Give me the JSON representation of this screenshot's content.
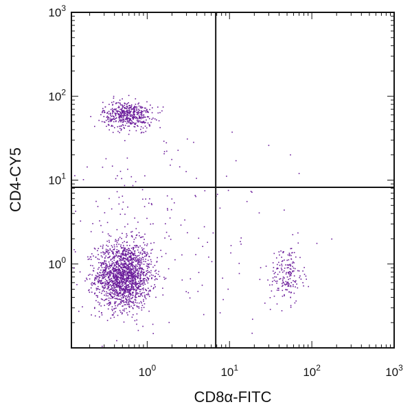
{
  "chart_data": {
    "type": "scatter",
    "title": "",
    "xlabel": "CD8α-FITC",
    "ylabel": "CD4-CY5",
    "x_scale": "log",
    "y_scale": "log",
    "xlim": [
      0.12,
      1000
    ],
    "ylim": [
      0.1,
      1000
    ],
    "x_ticks": [
      {
        "value": 1,
        "label": "10^0"
      },
      {
        "value": 10,
        "label": "10^1"
      },
      {
        "value": 100,
        "label": "10^2"
      },
      {
        "value": 1000,
        "label": "10^3"
      }
    ],
    "y_ticks": [
      {
        "value": 1,
        "label": "10^0"
      },
      {
        "value": 10,
        "label": "10^1"
      },
      {
        "value": 100,
        "label": "10^2"
      },
      {
        "value": 1000,
        "label": "10^3"
      }
    ],
    "quadrant_gates": {
      "x": 6.8,
      "y": 8.2
    },
    "point_color": "#6a1b9a",
    "populations": [
      {
        "center": [
          0.52,
          0.72
        ],
        "spread_log": [
          0.17,
          0.2
        ],
        "count": 1700
      },
      {
        "center": [
          0.58,
          60
        ],
        "spread_log": [
          0.15,
          0.08
        ],
        "count": 480
      },
      {
        "center": [
          50,
          0.75
        ],
        "spread_log": [
          0.1,
          0.17
        ],
        "count": 180
      },
      {
        "center": [
          0.7,
          3.5
        ],
        "spread_log": [
          0.6,
          0.55
        ],
        "count": 160
      },
      {
        "center": [
          8,
          1.0
        ],
        "spread_log": [
          0.6,
          0.4
        ],
        "count": 40
      }
    ],
    "sparse_points": [
      {
        "x": 30,
        "y": 26
      },
      {
        "x": 55,
        "y": 20
      },
      {
        "x": 12,
        "y": 17
      },
      {
        "x": 70,
        "y": 12
      }
    ]
  }
}
